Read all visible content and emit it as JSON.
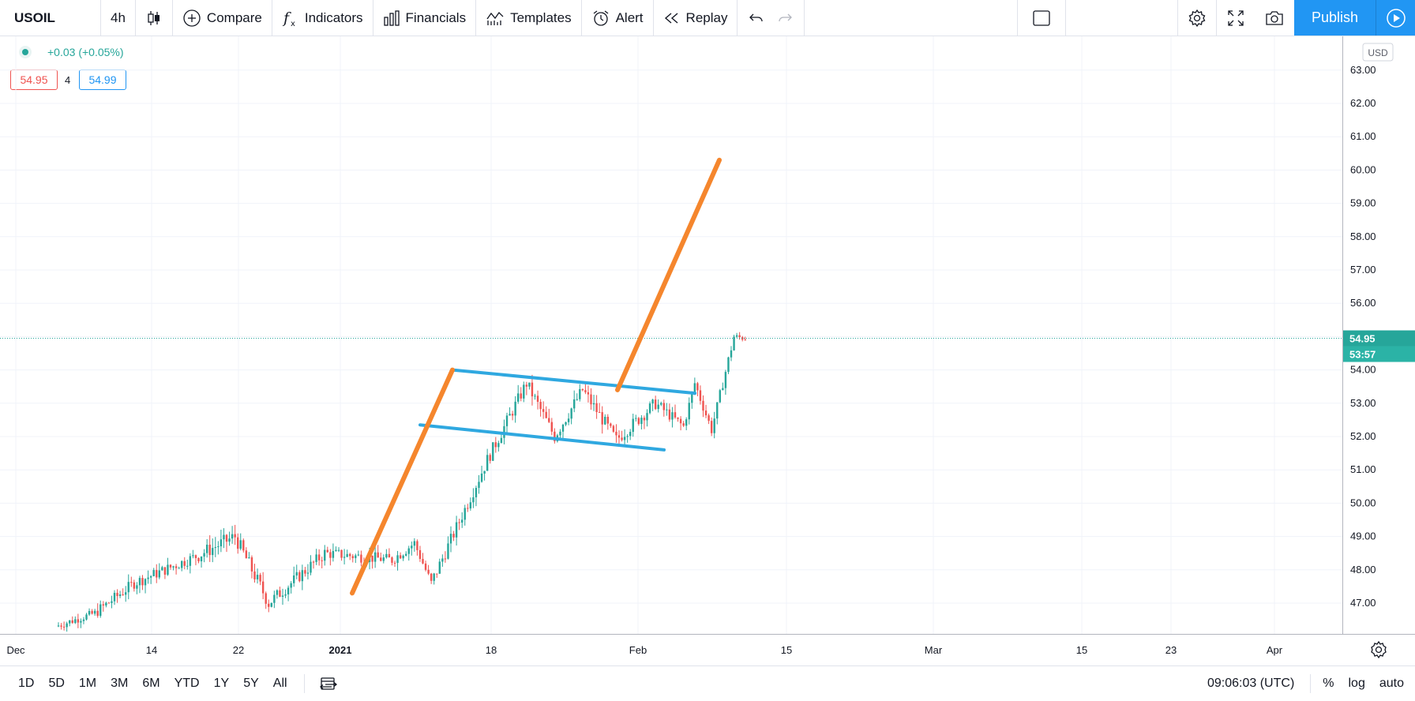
{
  "toolbar": {
    "symbol": "USOIL",
    "interval": "4h",
    "compare": "Compare",
    "indicators": "Indicators",
    "financials": "Financials",
    "templates": "Templates",
    "alert": "Alert",
    "replay": "Replay",
    "publish": "Publish"
  },
  "legend": {
    "change": "+0.03 (+0.05%)",
    "bid": "54.95",
    "spread": "4",
    "ask": "54.99"
  },
  "price_scale": {
    "currency": "USD",
    "last_price": "54.95",
    "countdown": "53:57"
  },
  "bottom": {
    "ranges": [
      "1D",
      "5D",
      "1M",
      "3M",
      "6M",
      "YTD",
      "1Y",
      "5Y",
      "All"
    ],
    "clock": "09:06:03 (UTC)",
    "percent": "%",
    "log": "log",
    "auto": "auto"
  },
  "colors": {
    "up": "#26a69a",
    "down": "#ef5350",
    "flag_lines": "#2fa8e0",
    "pole_lines": "#f5862d",
    "accent": "#2196f3"
  },
  "chart_data": {
    "type": "candlestick",
    "symbol": "USOIL",
    "interval": "4h",
    "currency": "USD",
    "y_ticks": [
      47,
      48,
      49,
      50,
      51,
      52,
      53,
      54,
      55,
      56,
      57,
      58,
      59,
      60,
      61,
      62,
      63
    ],
    "ylim": [
      46.1,
      63.4
    ],
    "x_ticks": [
      "Dec",
      "14",
      "22",
      "2021",
      "18",
      "Feb",
      "15",
      "Mar",
      "15",
      "23",
      "Apr"
    ],
    "last_price": 54.95,
    "grid": true,
    "price_segments": [
      {
        "from": 46.3,
        "to": 46.7,
        "n": 14,
        "noise": 0.25
      },
      {
        "from": 46.7,
        "to": 47.6,
        "n": 14,
        "noise": 0.35
      },
      {
        "from": 47.6,
        "to": 48.4,
        "n": 22,
        "noise": 0.35
      },
      {
        "from": 48.4,
        "to": 49.0,
        "n": 14,
        "noise": 0.45
      },
      {
        "from": 49.0,
        "to": 47.0,
        "n": 12,
        "noise": 0.45
      },
      {
        "from": 47.0,
        "to": 48.5,
        "n": 20,
        "noise": 0.4
      },
      {
        "from": 48.5,
        "to": 48.3,
        "n": 24,
        "noise": 0.35
      },
      {
        "from": 48.3,
        "to": 48.8,
        "n": 8,
        "noise": 0.35
      },
      {
        "from": 48.8,
        "to": 47.6,
        "n": 6,
        "noise": 0.3
      },
      {
        "from": 47.6,
        "to": 51.3,
        "n": 20,
        "noise": 0.4
      },
      {
        "from": 51.3,
        "to": 53.6,
        "n": 14,
        "noise": 0.4
      },
      {
        "from": 53.6,
        "to": 52.0,
        "n": 10,
        "noise": 0.4
      },
      {
        "from": 52.0,
        "to": 53.4,
        "n": 10,
        "noise": 0.4
      },
      {
        "from": 53.4,
        "to": 51.9,
        "n": 12,
        "noise": 0.4
      },
      {
        "from": 51.9,
        "to": 53.0,
        "n": 14,
        "noise": 0.4
      },
      {
        "from": 53.0,
        "to": 52.3,
        "n": 10,
        "noise": 0.35
      },
      {
        "from": 52.3,
        "to": 53.6,
        "n": 4,
        "noise": 0.3
      },
      {
        "from": 53.6,
        "to": 52.2,
        "n": 6,
        "noise": 0.3
      },
      {
        "from": 52.2,
        "to": 55.0,
        "n": 8,
        "noise": 0.3
      },
      {
        "from": 55.0,
        "to": 54.95,
        "n": 4,
        "noise": 0.2
      }
    ],
    "trendlines": [
      {
        "name": "flag-upper",
        "color": "blue",
        "x1": "Jan 12",
        "y1": 54.0,
        "x2": "Feb 6",
        "y2": 53.3
      },
      {
        "name": "flag-lower",
        "color": "blue",
        "x1": "Jan 9",
        "y1": 52.35,
        "x2": "Feb 4",
        "y2": 51.6
      },
      {
        "name": "pole",
        "color": "orange",
        "x1": "Jan 4",
        "y1": 47.3,
        "x2": "Jan 12",
        "y2": 54.0
      },
      {
        "name": "target-projection",
        "color": "orange",
        "x1": "Jan 29",
        "y1": 53.4,
        "x2": "Feb 8",
        "y2": 60.3
      }
    ]
  }
}
